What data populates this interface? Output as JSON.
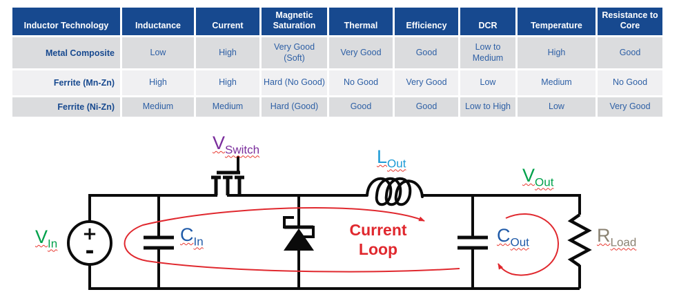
{
  "table": {
    "columns": [
      "Inductor Technology",
      "Inductance",
      "Current",
      "Magnetic Saturation",
      "Thermal",
      "Efficiency",
      "DCR",
      "Temperature",
      "Resistance to Core"
    ],
    "rows": [
      {
        "label": "Metal Composite",
        "values": [
          "Low",
          "High",
          "Very Good (Soft)",
          "Very Good",
          "Good",
          "Low to Medium",
          "High",
          "Good"
        ]
      },
      {
        "label": "Ferrite (Mn-Zn)",
        "values": [
          "High",
          "High",
          "Hard (No Good)",
          "No Good",
          "Very Good",
          "Low",
          "Medium",
          "No Good"
        ]
      },
      {
        "label": "Ferrite (Ni-Zn)",
        "values": [
          "Medium",
          "Medium",
          "Hard (Good)",
          "Good",
          "Good",
          "Low to High",
          "Low",
          "Very Good"
        ]
      }
    ],
    "colors": {
      "header_bg": "#17498F",
      "header_text": "#FFFFFF",
      "row_odd_bg": "#DBDCDE",
      "row_even_bg": "#F0F0F2",
      "row_label_text": "#17498F",
      "cell_text": "#2D5FA5"
    }
  },
  "circuit": {
    "labels": {
      "v_in": {
        "main": "V",
        "sub": "In",
        "color": "#00A14B"
      },
      "v_switch": {
        "main": "V",
        "sub": "Switch",
        "color": "#7A2D9C"
      },
      "c_in": {
        "main": "C",
        "sub": "In",
        "color": "#1F5AA8"
      },
      "l_out": {
        "main": "L",
        "sub": "Out",
        "color": "#1C9AD6"
      },
      "v_out": {
        "main": "V",
        "sub": "Out",
        "color": "#00A14B"
      },
      "c_out": {
        "main": "C",
        "sub": "Out",
        "color": "#1F5AA8"
      },
      "r_load": {
        "main": "R",
        "sub": "Load",
        "color": "#8A8272"
      }
    },
    "current_loop": {
      "line1": "Current",
      "line2": "Loop",
      "color": "#E0282E"
    },
    "source_plus": "+",
    "source_minus": "-",
    "wire_color": "#0B0B0B",
    "loop_color": "#E0282E",
    "squiggle_color": "#E8372F"
  }
}
